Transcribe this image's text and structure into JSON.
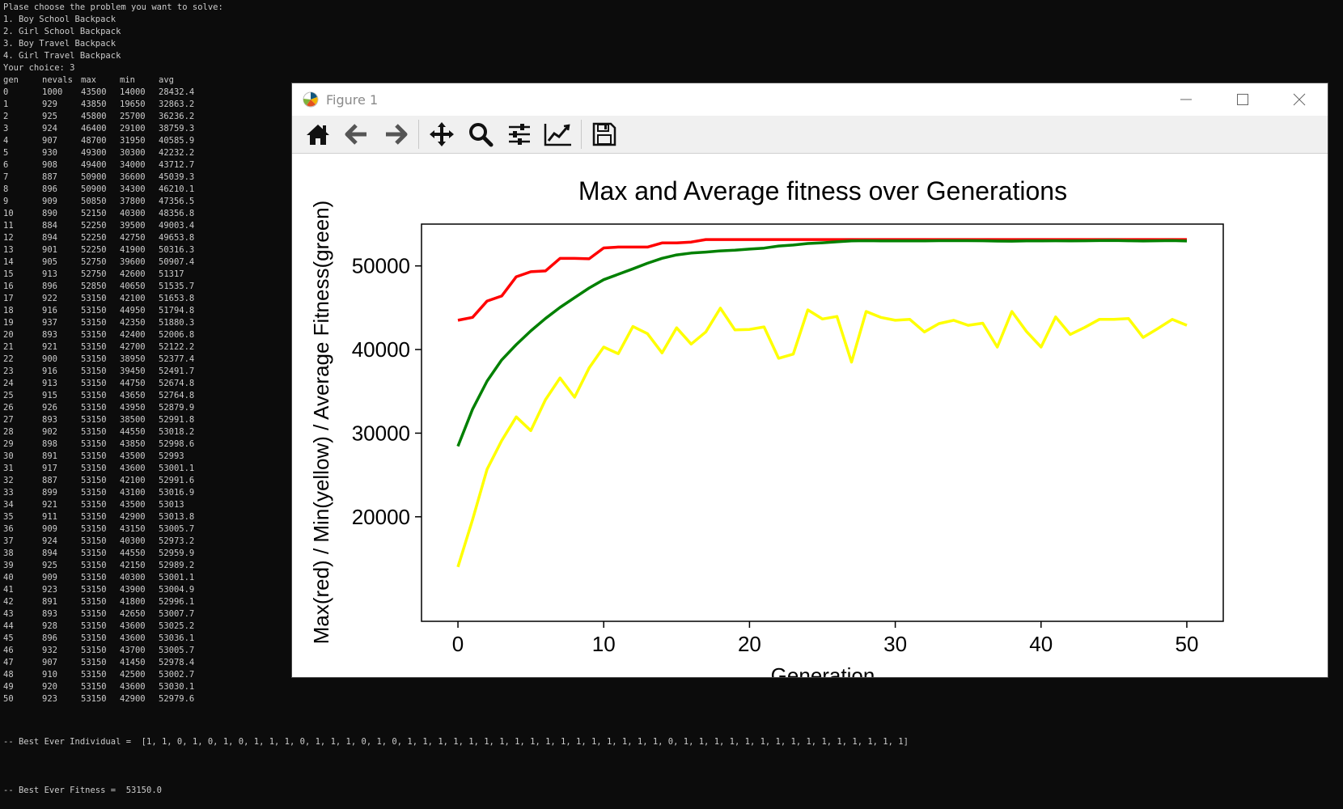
{
  "console": {
    "prompt_lines": [
      "Plase choose the problem you want to solve:",
      "1. Boy School Backpack",
      "2. Girl School Backpack",
      "3. Boy Travel Backpack",
      "4. Girl Travel Backpack",
      "Your choice: 3"
    ],
    "columns": [
      "gen",
      "nevals",
      "max",
      "min",
      "avg"
    ],
    "rows": [
      [
        "0",
        "1000",
        "43500",
        "14000",
        "28432.4"
      ],
      [
        "1",
        "929",
        "43850",
        "19650",
        "32863.2"
      ],
      [
        "2",
        "925",
        "45800",
        "25700",
        "36236.2"
      ],
      [
        "3",
        "924",
        "46400",
        "29100",
        "38759.3"
      ],
      [
        "4",
        "907",
        "48700",
        "31950",
        "40585.9"
      ],
      [
        "5",
        "930",
        "49300",
        "30300",
        "42232.2"
      ],
      [
        "6",
        "908",
        "49400",
        "34000",
        "43712.7"
      ],
      [
        "7",
        "887",
        "50900",
        "36600",
        "45039.3"
      ],
      [
        "8",
        "896",
        "50900",
        "34300",
        "46210.1"
      ],
      [
        "9",
        "909",
        "50850",
        "37800",
        "47356.5"
      ],
      [
        "10",
        "890",
        "52150",
        "40300",
        "48356.8"
      ],
      [
        "11",
        "884",
        "52250",
        "39500",
        "49003.4"
      ],
      [
        "12",
        "894",
        "52250",
        "42750",
        "49653.8"
      ],
      [
        "13",
        "901",
        "52250",
        "41900",
        "50316.3"
      ],
      [
        "14",
        "905",
        "52750",
        "39600",
        "50907.4"
      ],
      [
        "15",
        "913",
        "52750",
        "42600",
        "51317"
      ],
      [
        "16",
        "896",
        "52850",
        "40650",
        "51535.7"
      ],
      [
        "17",
        "922",
        "53150",
        "42100",
        "51653.8"
      ],
      [
        "18",
        "916",
        "53150",
        "44950",
        "51794.8"
      ],
      [
        "19",
        "937",
        "53150",
        "42350",
        "51880.3"
      ],
      [
        "20",
        "893",
        "53150",
        "42400",
        "52006.8"
      ],
      [
        "21",
        "921",
        "53150",
        "42700",
        "52122.2"
      ],
      [
        "22",
        "900",
        "53150",
        "38950",
        "52377.4"
      ],
      [
        "23",
        "916",
        "53150",
        "39450",
        "52491.7"
      ],
      [
        "24",
        "913",
        "53150",
        "44750",
        "52674.8"
      ],
      [
        "25",
        "915",
        "53150",
        "43650",
        "52764.8"
      ],
      [
        "26",
        "926",
        "53150",
        "43950",
        "52879.9"
      ],
      [
        "27",
        "893",
        "53150",
        "38500",
        "52991.8"
      ],
      [
        "28",
        "902",
        "53150",
        "44550",
        "53018.2"
      ],
      [
        "29",
        "898",
        "53150",
        "43850",
        "52998.6"
      ],
      [
        "30",
        "891",
        "53150",
        "43500",
        "52993"
      ],
      [
        "31",
        "917",
        "53150",
        "43600",
        "53001.1"
      ],
      [
        "32",
        "887",
        "53150",
        "42100",
        "52991.6"
      ],
      [
        "33",
        "899",
        "53150",
        "43100",
        "53016.9"
      ],
      [
        "34",
        "921",
        "53150",
        "43500",
        "53013"
      ],
      [
        "35",
        "911",
        "53150",
        "42900",
        "53013.8"
      ],
      [
        "36",
        "909",
        "53150",
        "43150",
        "53005.7"
      ],
      [
        "37",
        "924",
        "53150",
        "40300",
        "52973.2"
      ],
      [
        "38",
        "894",
        "53150",
        "44550",
        "52959.9"
      ],
      [
        "39",
        "925",
        "53150",
        "42150",
        "52989.2"
      ],
      [
        "40",
        "909",
        "53150",
        "40300",
        "53001.1"
      ],
      [
        "41",
        "923",
        "53150",
        "43900",
        "53004.9"
      ],
      [
        "42",
        "891",
        "53150",
        "41800",
        "52996.1"
      ],
      [
        "43",
        "893",
        "53150",
        "42650",
        "53007.7"
      ],
      [
        "44",
        "928",
        "53150",
        "43600",
        "53025.2"
      ],
      [
        "45",
        "896",
        "53150",
        "43600",
        "53036.1"
      ],
      [
        "46",
        "932",
        "53150",
        "43700",
        "53005.7"
      ],
      [
        "47",
        "907",
        "53150",
        "41450",
        "52978.4"
      ],
      [
        "48",
        "910",
        "53150",
        "42500",
        "53002.7"
      ],
      [
        "49",
        "920",
        "53150",
        "43600",
        "53030.1"
      ],
      [
        "50",
        "923",
        "53150",
        "42900",
        "52979.6"
      ]
    ],
    "best_individual": "-- Best Ever Individual =  [1, 1, 0, 1, 0, 1, 0, 1, 1, 1, 0, 1, 1, 1, 0, 1, 0, 1, 1, 1, 1, 1, 1, 1, 1, 1, 1, 1, 1, 1, 1, 1, 1, 1, 0, 1, 1, 1, 1, 1, 1, 1, 1, 1, 1, 1, 1, 1, 1, 1]",
    "best_fitness": "-- Best Ever Fitness =  53150.0"
  },
  "window": {
    "title": "Figure 1",
    "toolbar": [
      "home-icon",
      "back-icon",
      "forward-icon",
      "pan-icon",
      "zoom-icon",
      "configure-subplots-icon",
      "edit-axis-icon",
      "save-icon"
    ]
  },
  "chart_data": {
    "type": "line",
    "title": "Max and Average fitness over Generations",
    "xlabel": "Generation",
    "ylabel": "Max(red) / Min(yellow) / Average Fitness(green)",
    "xlim": [
      -2.5,
      52.5
    ],
    "ylim": [
      7500,
      55000
    ],
    "xticks": [
      0,
      10,
      20,
      30,
      40,
      50
    ],
    "yticks": [
      20000,
      30000,
      40000,
      50000
    ],
    "grid": false,
    "series": [
      {
        "color": "#ff0000",
        "values": [
          43500,
          43850,
          45800,
          46400,
          48700,
          49300,
          49400,
          50900,
          50900,
          50850,
          52150,
          52250,
          52250,
          52250,
          52750,
          52750,
          52850,
          53150,
          53150,
          53150,
          53150,
          53150,
          53150,
          53150,
          53150,
          53150,
          53150,
          53150,
          53150,
          53150,
          53150,
          53150,
          53150,
          53150,
          53150,
          53150,
          53150,
          53150,
          53150,
          53150,
          53150,
          53150,
          53150,
          53150,
          53150,
          53150,
          53150,
          53150,
          53150,
          53150,
          53150
        ]
      },
      {
        "color": "#ffff00",
        "values": [
          14000,
          19650,
          25700,
          29100,
          31950,
          30300,
          34000,
          36600,
          34300,
          37800,
          40300,
          39500,
          42750,
          41900,
          39600,
          42600,
          40650,
          42100,
          44950,
          42350,
          42400,
          42700,
          38950,
          39450,
          44750,
          43650,
          43950,
          38500,
          44550,
          43850,
          43500,
          43600,
          42100,
          43100,
          43500,
          42900,
          43150,
          40300,
          44550,
          42150,
          40300,
          43900,
          41800,
          42650,
          43600,
          43600,
          43700,
          41450,
          42500,
          43600,
          42900
        ]
      },
      {
        "color": "#008000",
        "values": [
          28432.4,
          32863.2,
          36236.2,
          38759.3,
          40585.9,
          42232.2,
          43712.7,
          45039.3,
          46210.1,
          47356.5,
          48356.8,
          49003.4,
          49653.8,
          50316.3,
          50907.4,
          51317,
          51535.7,
          51653.8,
          51794.8,
          51880.3,
          52006.8,
          52122.2,
          52377.4,
          52491.7,
          52674.8,
          52764.8,
          52879.9,
          52991.8,
          53018.2,
          52998.6,
          52993,
          53001.1,
          52991.6,
          53016.9,
          53013,
          53013.8,
          53005.7,
          52973.2,
          52959.9,
          52989.2,
          53001.1,
          53004.9,
          52996.1,
          53007.7,
          53025.2,
          53036.1,
          53005.7,
          52978.4,
          53002.7,
          53030.1,
          52979.6
        ]
      }
    ]
  }
}
